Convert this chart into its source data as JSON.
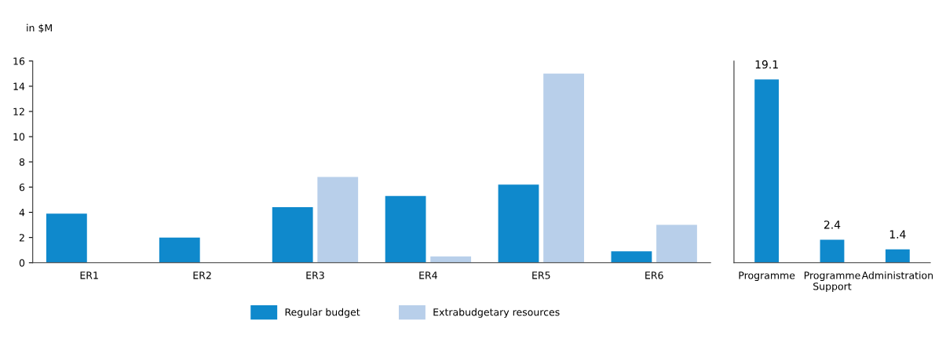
{
  "chart_data": [
    {
      "type": "bar",
      "ylabel": "in $M",
      "categories": [
        "ER1",
        "ER2",
        "ER3",
        "ER4",
        "ER5",
        "ER6"
      ],
      "series": [
        {
          "name": "Regular budget",
          "color": "#0f89cc",
          "values": [
            3.9,
            2.0,
            4.4,
            5.3,
            6.2,
            0.9
          ]
        },
        {
          "name": "Extrabudgetary resources",
          "color": "#b8cfea",
          "values": [
            0,
            0,
            6.8,
            0.5,
            15.0,
            3.0
          ]
        }
      ],
      "ylim": [
        0,
        16
      ],
      "yticks": [
        0,
        2,
        4,
        6,
        8,
        10,
        12,
        14,
        16
      ],
      "grid": false,
      "legend": "bottom"
    },
    {
      "type": "bar",
      "categories": [
        "Programme",
        "Programme\nSupport",
        "Administration"
      ],
      "series": [
        {
          "color": "#0f89cc",
          "values": [
            19.1,
            2.4,
            1.4
          ]
        }
      ],
      "data_labels": true,
      "tick_labels": "x"
    }
  ]
}
